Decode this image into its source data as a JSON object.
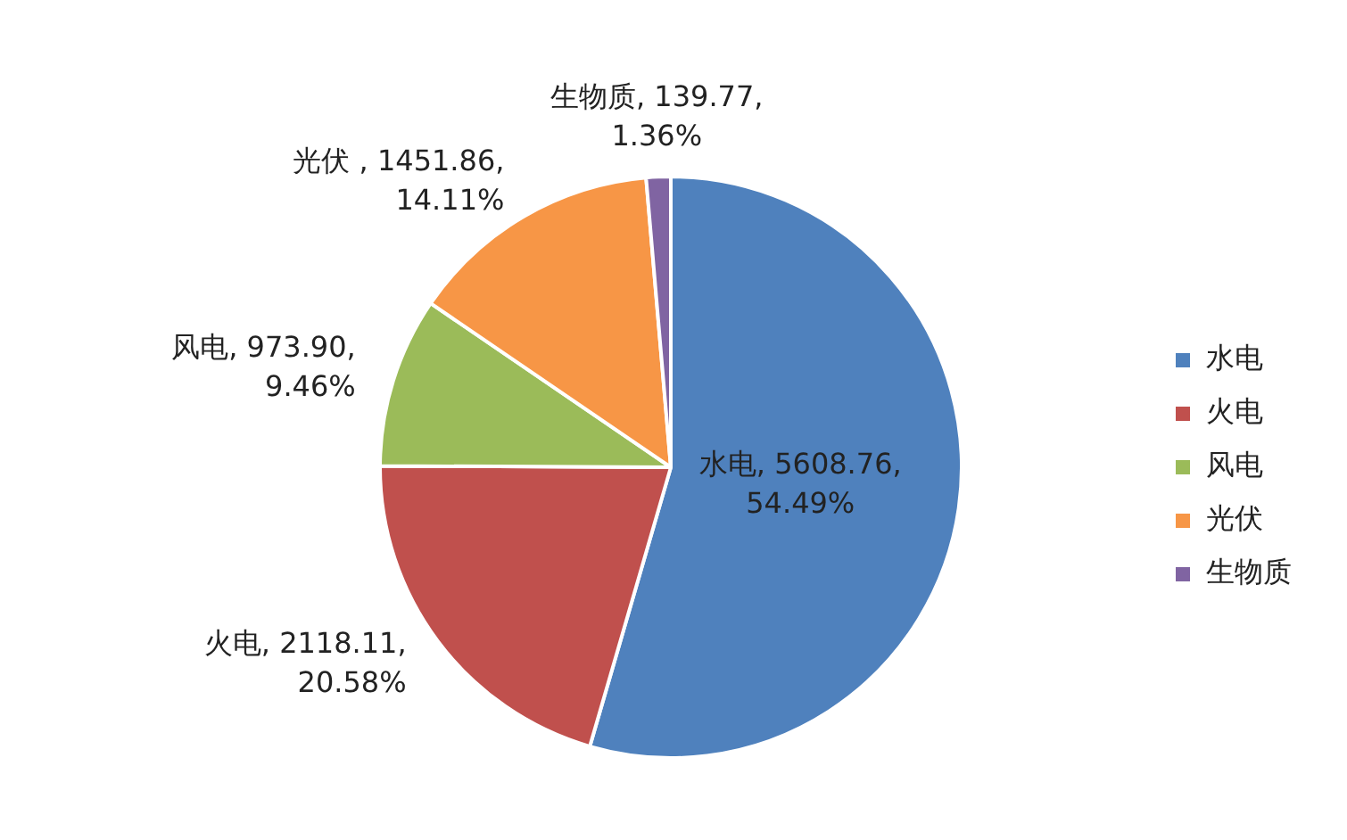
{
  "chart_data": {
    "type": "pie",
    "categories": [
      "水电",
      "火电",
      "风电",
      "光伏",
      "生物质"
    ],
    "values": [
      5608.76,
      2118.11,
      973.9,
      1451.86,
      139.77
    ],
    "colors": [
      "#4f81bd",
      "#c0504d",
      "#9bbb59",
      "#f79646",
      "#8064a2"
    ],
    "value_labels": [
      "水电, 5608.76,\n54.49%",
      "火电, 2118.11,\n20.58%",
      "风电, 973.90,\n9.46%",
      "光伏 , 1451.86,\n14.11%",
      "生物质, 139.77,\n1.36%"
    ],
    "legend": "right"
  }
}
